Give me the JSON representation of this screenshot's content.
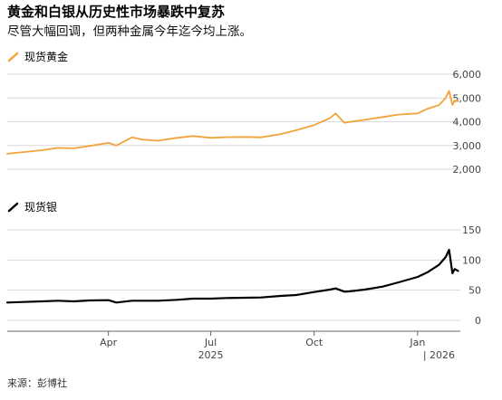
{
  "title": "黄金和白银从历史性市场暴跌中复苏",
  "subtitle": "尽管大幅回调，但两种金属今年迄今均上涨。",
  "source": "来源：彭博社",
  "colors": {
    "gold": "#f2a33a",
    "silver": "#000000",
    "grid": "#d9d9d9",
    "axis": "#666666"
  },
  "chart_data": [
    {
      "type": "line",
      "series": [
        {
          "name": "现货黄金",
          "color": "#f2a33a",
          "x": [
            "2025-01-01",
            "2025-01-15",
            "2025-02-01",
            "2025-02-15",
            "2025-03-01",
            "2025-03-15",
            "2025-04-01",
            "2025-04-08",
            "2025-04-22",
            "2025-05-01",
            "2025-05-15",
            "2025-06-01",
            "2025-06-15",
            "2025-07-01",
            "2025-07-15",
            "2025-08-01",
            "2025-08-15",
            "2025-09-01",
            "2025-09-15",
            "2025-10-01",
            "2025-10-15",
            "2025-10-20",
            "2025-10-28",
            "2025-11-01",
            "2025-11-15",
            "2025-12-01",
            "2025-12-15",
            "2026-01-01",
            "2026-01-10",
            "2026-01-20",
            "2026-01-26",
            "2026-01-29",
            "2026-02-01",
            "2026-02-03",
            "2026-02-06"
          ],
          "values": [
            2650,
            2720,
            2800,
            2900,
            2880,
            2980,
            3110,
            3000,
            3340,
            3250,
            3200,
            3320,
            3400,
            3320,
            3350,
            3360,
            3340,
            3480,
            3640,
            3860,
            4150,
            4350,
            3950,
            3990,
            4080,
            4200,
            4300,
            4350,
            4550,
            4700,
            5000,
            5300,
            4700,
            4900,
            4860
          ]
        }
      ],
      "ylim": [
        2000,
        6000
      ],
      "yticks": [
        "6,000",
        "5,000",
        "4,000",
        "3,000",
        "2,000"
      ],
      "ytick_values": [
        6000,
        5000,
        4000,
        3000,
        2000
      ]
    },
    {
      "type": "line",
      "series": [
        {
          "name": "现货银",
          "color": "#000000",
          "x": [
            "2025-01-01",
            "2025-01-15",
            "2025-02-01",
            "2025-02-15",
            "2025-03-01",
            "2025-03-15",
            "2025-04-01",
            "2025-04-08",
            "2025-04-22",
            "2025-05-01",
            "2025-05-15",
            "2025-06-01",
            "2025-06-15",
            "2025-07-01",
            "2025-07-15",
            "2025-08-01",
            "2025-08-15",
            "2025-09-01",
            "2025-09-15",
            "2025-10-01",
            "2025-10-15",
            "2025-10-20",
            "2025-10-28",
            "2025-11-01",
            "2025-11-15",
            "2025-12-01",
            "2025-12-15",
            "2026-01-01",
            "2026-01-10",
            "2026-01-20",
            "2026-01-26",
            "2026-01-29",
            "2026-02-01",
            "2026-02-03",
            "2026-02-06"
          ],
          "values": [
            29.5,
            30.5,
            31.5,
            32.5,
            31.5,
            33,
            33.5,
            29.5,
            32.5,
            32.5,
            32.5,
            34,
            36,
            36,
            37,
            37.5,
            38,
            40.5,
            42,
            47,
            51,
            53,
            47.5,
            48,
            51,
            56,
            63,
            72,
            80,
            92,
            105,
            117,
            78,
            85,
            82
          ]
        }
      ],
      "ylim": [
        0,
        150
      ],
      "yticks": [
        "150",
        "100",
        "50",
        "0"
      ],
      "ytick_values": [
        150,
        100,
        50,
        0
      ]
    }
  ],
  "xaxis": {
    "ticks": [
      {
        "label": "Apr",
        "date": "2025-04-01"
      },
      {
        "label": "Jul",
        "date": "2025-07-01"
      },
      {
        "label": "Oct",
        "date": "2025-10-01"
      },
      {
        "label": "Jan",
        "date": "2026-01-01"
      }
    ],
    "years": [
      {
        "label": "2025",
        "date": "2025-07-01"
      },
      {
        "label": "| 2026",
        "date": "2026-01-20"
      }
    ]
  }
}
